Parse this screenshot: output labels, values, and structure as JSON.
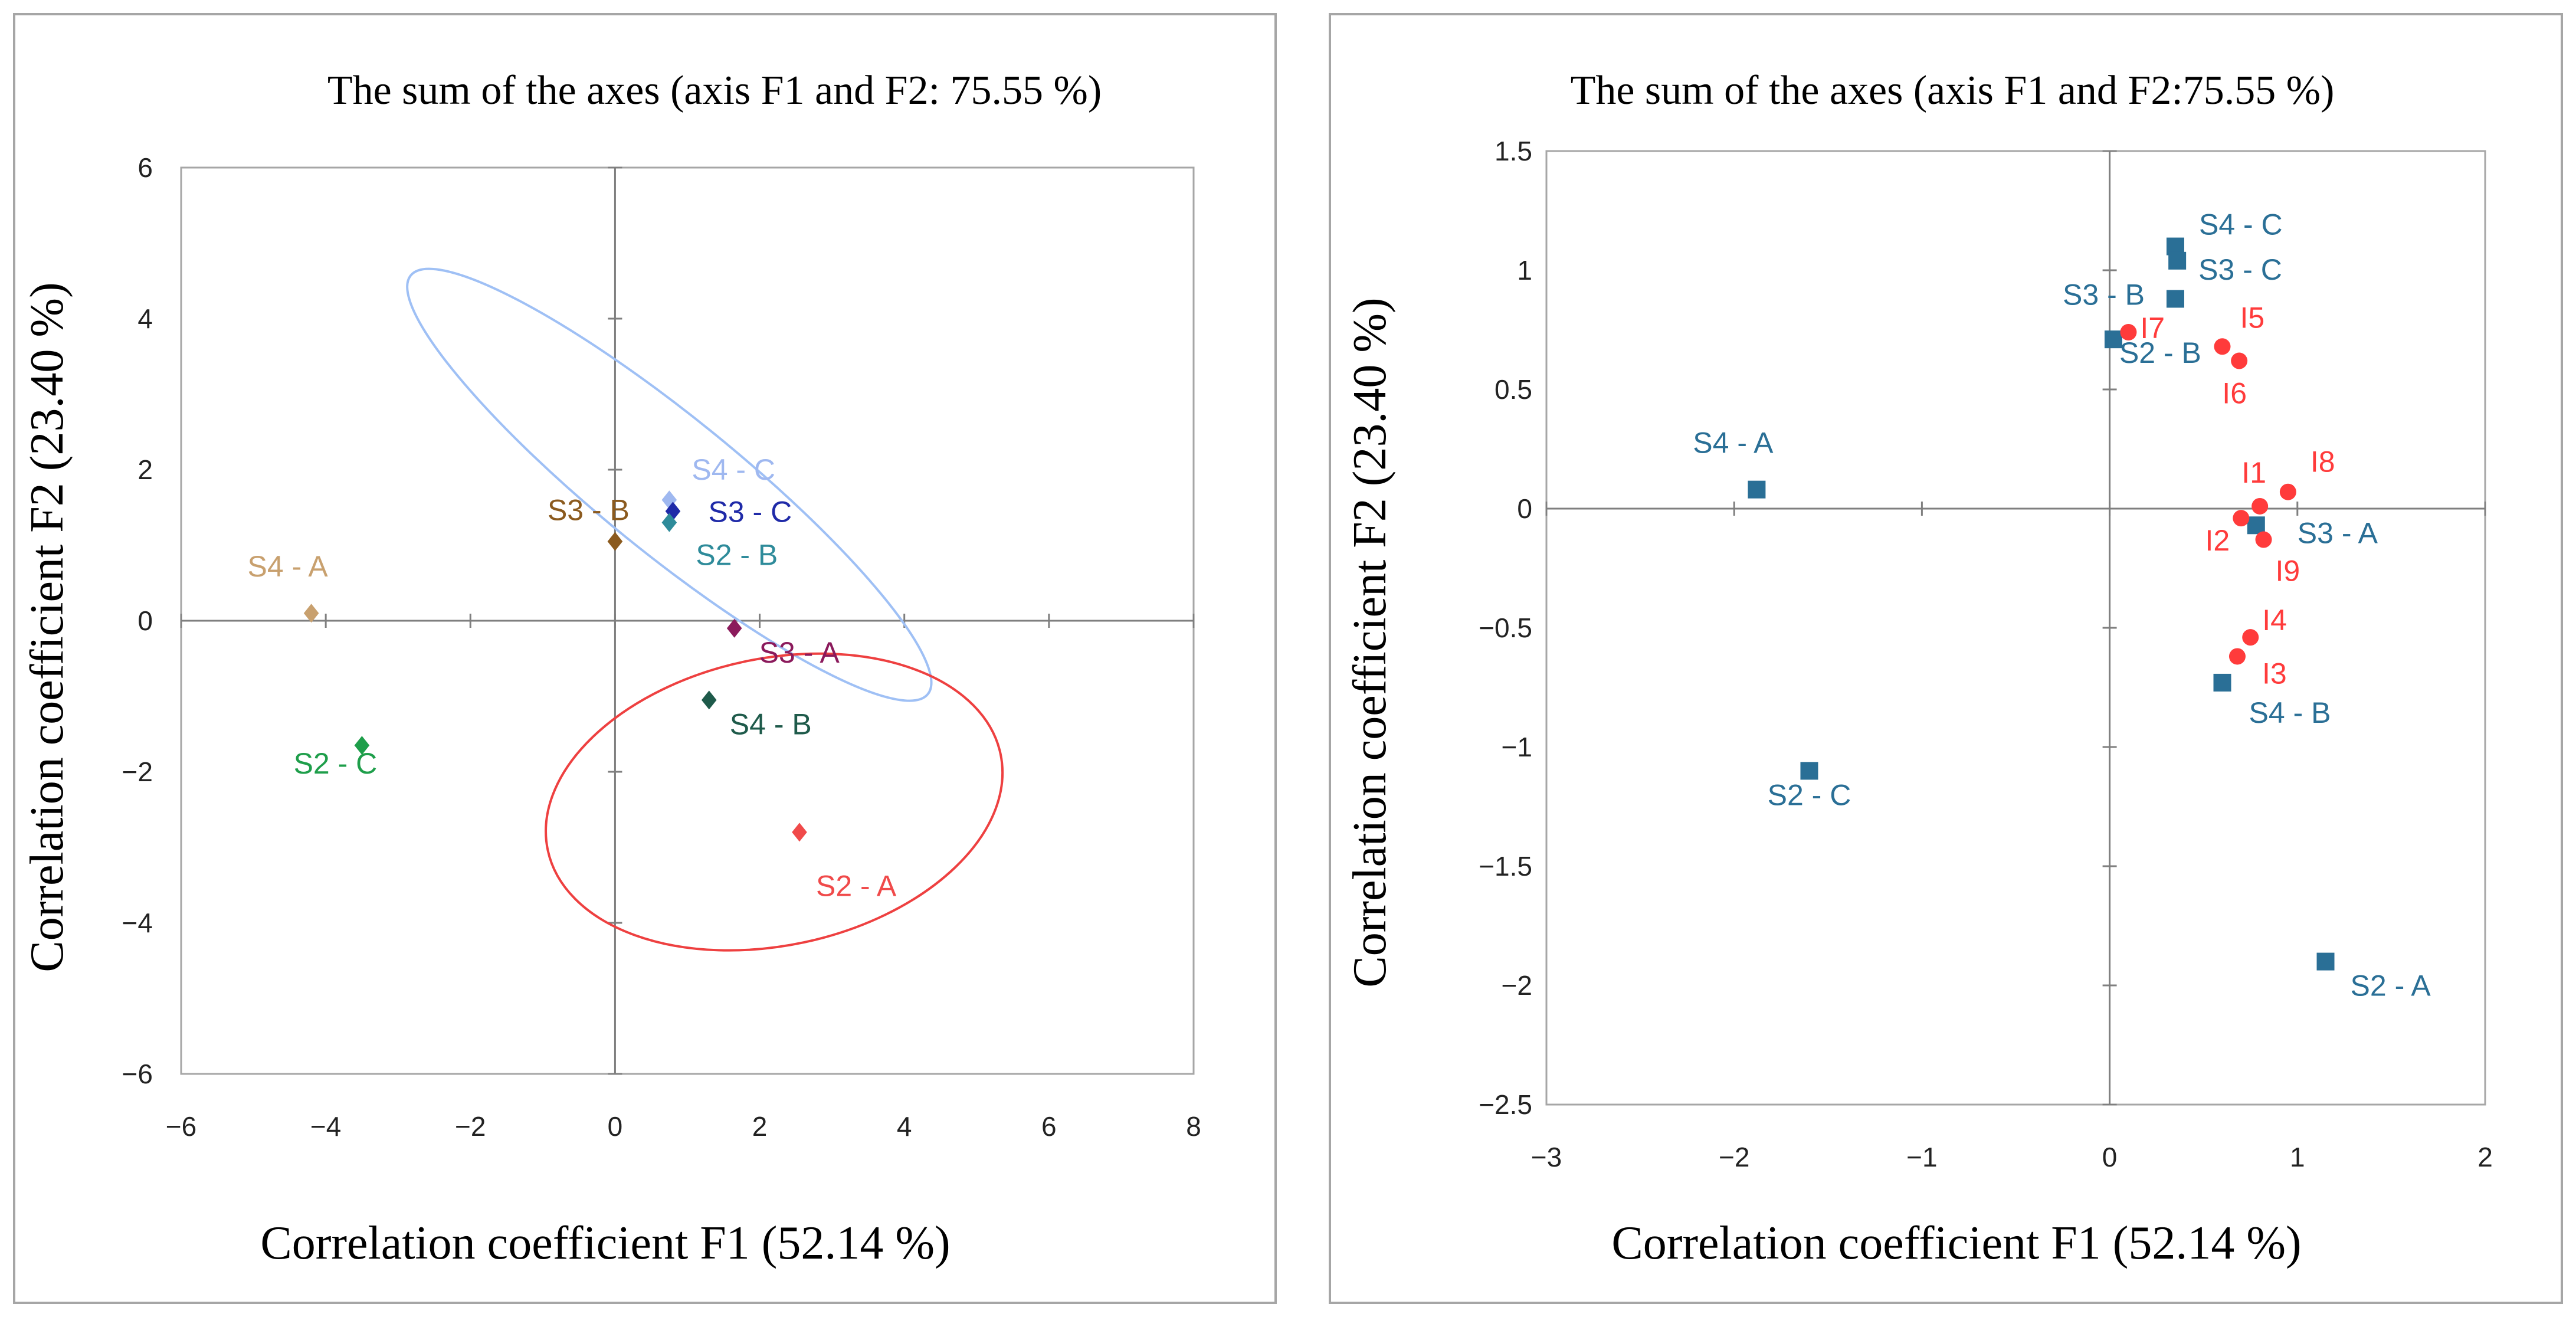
{
  "chart_data": [
    {
      "type": "scatter",
      "title": "The sum of the axes (axis F1 and F2: 75.55 %)",
      "xlabel": "Correlation coefficient  F1 (52.14 %)",
      "ylabel": "Correlation coefficient F2 (23.40 %)",
      "xlim": [
        -6,
        8
      ],
      "ylim": [
        -6,
        6
      ],
      "x_ticks": [
        -6,
        -4,
        -2,
        0,
        2,
        4,
        6,
        8
      ],
      "y_ticks": [
        -6,
        -4,
        -2,
        0,
        2,
        4,
        6
      ],
      "marker": "diamond",
      "grid": false,
      "points": [
        {
          "label": "S4 - A",
          "x": -4.2,
          "y": 0.1,
          "color": "#c8a06e"
        },
        {
          "label": "S2 - C",
          "x": -3.5,
          "y": -1.65,
          "color": "#1e9e4a"
        },
        {
          "label": "S3 - B",
          "x": 0.0,
          "y": 1.05,
          "color": "#8b5a1e"
        },
        {
          "label": "S4 - C",
          "x": 0.75,
          "y": 1.6,
          "color": "#9fb8f0"
        },
        {
          "label": "S3 - C",
          "x": 0.8,
          "y": 1.45,
          "color": "#1f2aa8"
        },
        {
          "label": "S2 - B",
          "x": 0.75,
          "y": 1.3,
          "color": "#2e8b9a"
        },
        {
          "label": "S3 - A",
          "x": 1.65,
          "y": -0.1,
          "color": "#8b1a5c"
        },
        {
          "label": "S4 - B",
          "x": 1.3,
          "y": -1.05,
          "color": "#1e5a4a"
        },
        {
          "label": "S2 - A",
          "x": 2.55,
          "y": -2.8,
          "color": "#f04a4a"
        }
      ],
      "ellipses": [
        {
          "color": "#9fc0f5",
          "cx": 0.75,
          "cy": 1.8,
          "rx": 4.6,
          "ry": 0.9,
          "angle_deg": -39
        },
        {
          "color": "#ee4040",
          "cx": 2.2,
          "cy": -2.4,
          "rx": 3.2,
          "ry": 1.9,
          "angle_deg": 12
        }
      ]
    },
    {
      "type": "scatter",
      "title": "The sum of the axes (axis F1 and F2:75.55 %)",
      "xlabel": "Correlation coefficient F1 (52.14 %)",
      "ylabel": "Correlation coefficient F2 (23.40 %)",
      "xlim": [
        -3,
        2
      ],
      "ylim": [
        -2.5,
        1.5
      ],
      "x_ticks": [
        -3,
        -2,
        -1,
        0,
        1,
        2
      ],
      "y_ticks": [
        -2.5,
        -2,
        -1.5,
        -1,
        -0.5,
        0,
        0.5,
        1,
        1.5
      ],
      "grid": false,
      "series": [
        {
          "marker": "square",
          "color": "#2a6f96",
          "points": [
            {
              "label": "S4 - A",
              "x": -1.88,
              "y": 0.08
            },
            {
              "label": "S2 - C",
              "x": -1.6,
              "y": -1.1
            },
            {
              "label": "S3 - B",
              "x": 0.35,
              "y": 0.88
            },
            {
              "label": "S2 - B",
              "x": 0.02,
              "y": 0.71
            },
            {
              "label": "S4 - C",
              "x": 0.35,
              "y": 1.1
            },
            {
              "label": "S3 - C",
              "x": 0.36,
              "y": 1.04
            },
            {
              "label": "S3 - A",
              "x": 0.78,
              "y": -0.07
            },
            {
              "label": "S4 - B",
              "x": 0.6,
              "y": -0.73
            },
            {
              "label": "S2 - A",
              "x": 1.15,
              "y": -1.9
            }
          ]
        },
        {
          "marker": "circle",
          "color": "#ff3b3b",
          "points": [
            {
              "label": "I1",
              "x": 0.8,
              "y": 0.01
            },
            {
              "label": "I2",
              "x": 0.7,
              "y": -0.04
            },
            {
              "label": "I3",
              "x": 0.68,
              "y": -0.62
            },
            {
              "label": "I4",
              "x": 0.75,
              "y": -0.54
            },
            {
              "label": "I5",
              "x": 0.6,
              "y": 0.68
            },
            {
              "label": "I6",
              "x": 0.69,
              "y": 0.62
            },
            {
              "label": "I7",
              "x": 0.1,
              "y": 0.74
            },
            {
              "label": "I8",
              "x": 0.95,
              "y": 0.07
            },
            {
              "label": "I9",
              "x": 0.82,
              "y": -0.13
            }
          ]
        }
      ]
    }
  ]
}
